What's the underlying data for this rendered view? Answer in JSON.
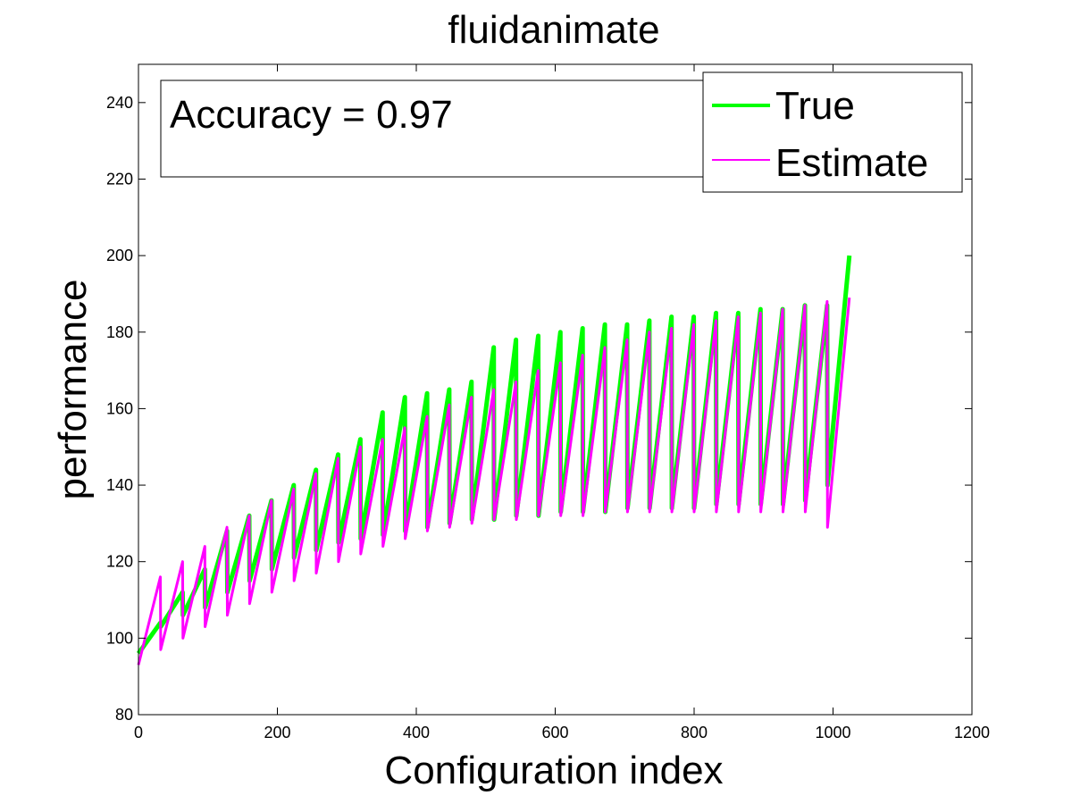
{
  "chart_data": {
    "type": "line",
    "title": "fluidanimate",
    "xlabel": "Configuration index",
    "ylabel": "performance",
    "xlim": [
      0,
      1200
    ],
    "ylim": [
      80,
      250
    ],
    "xticks": [
      0,
      200,
      400,
      600,
      800,
      1000,
      1200
    ],
    "yticks": [
      80,
      100,
      120,
      140,
      160,
      180,
      200,
      220,
      240
    ],
    "grid": false,
    "legend_position": "top-right",
    "annotation": "Accuracy = 0.97",
    "series": [
      {
        "name": "True",
        "color": "#00ff00",
        "cycles": [
          {
            "x0": 0,
            "x1": 32,
            "y0": 96,
            "y1": 104
          },
          {
            "x0": 32,
            "x1": 64,
            "y0": 103,
            "y1": 112
          },
          {
            "x0": 64,
            "x1": 96,
            "y0": 106,
            "y1": 118
          },
          {
            "x0": 96,
            "x1": 128,
            "y0": 108,
            "y1": 128
          },
          {
            "x0": 128,
            "x1": 160,
            "y0": 112,
            "y1": 132
          },
          {
            "x0": 160,
            "x1": 192,
            "y0": 115,
            "y1": 136
          },
          {
            "x0": 192,
            "x1": 224,
            "y0": 118,
            "y1": 140
          },
          {
            "x0": 224,
            "x1": 256,
            "y0": 121,
            "y1": 144
          },
          {
            "x0": 256,
            "x1": 288,
            "y0": 123,
            "y1": 148
          },
          {
            "x0": 288,
            "x1": 320,
            "y0": 125,
            "y1": 152
          },
          {
            "x0": 320,
            "x1": 352,
            "y0": 126,
            "y1": 159
          },
          {
            "x0": 352,
            "x1": 384,
            "y0": 127,
            "y1": 163
          },
          {
            "x0": 384,
            "x1": 416,
            "y0": 128,
            "y1": 164
          },
          {
            "x0": 416,
            "x1": 448,
            "y0": 129,
            "y1": 165
          },
          {
            "x0": 448,
            "x1": 480,
            "y0": 130,
            "y1": 167
          },
          {
            "x0": 480,
            "x1": 512,
            "y0": 131,
            "y1": 176
          },
          {
            "x0": 512,
            "x1": 544,
            "y0": 131,
            "y1": 178
          },
          {
            "x0": 544,
            "x1": 576,
            "y0": 132,
            "y1": 179
          },
          {
            "x0": 576,
            "x1": 608,
            "y0": 132,
            "y1": 180
          },
          {
            "x0": 608,
            "x1": 640,
            "y0": 133,
            "y1": 181
          },
          {
            "x0": 640,
            "x1": 672,
            "y0": 133,
            "y1": 182
          },
          {
            "x0": 672,
            "x1": 704,
            "y0": 133,
            "y1": 182
          },
          {
            "x0": 704,
            "x1": 736,
            "y0": 134,
            "y1": 183
          },
          {
            "x0": 736,
            "x1": 768,
            "y0": 134,
            "y1": 184
          },
          {
            "x0": 768,
            "x1": 800,
            "y0": 134,
            "y1": 184
          },
          {
            "x0": 800,
            "x1": 832,
            "y0": 134,
            "y1": 185
          },
          {
            "x0": 832,
            "x1": 864,
            "y0": 135,
            "y1": 185
          },
          {
            "x0": 864,
            "x1": 896,
            "y0": 135,
            "y1": 186
          },
          {
            "x0": 896,
            "x1": 928,
            "y0": 135,
            "y1": 186
          },
          {
            "x0": 928,
            "x1": 960,
            "y0": 135,
            "y1": 187
          },
          {
            "x0": 960,
            "x1": 992,
            "y0": 136,
            "y1": 187
          },
          {
            "x0": 992,
            "x1": 1024,
            "y0": 140,
            "y1": 200
          }
        ]
      },
      {
        "name": "Estimate",
        "color": "#ff00ff",
        "cycles": [
          {
            "x0": 0,
            "x1": 32,
            "y0": 93,
            "y1": 116
          },
          {
            "x0": 32,
            "x1": 64,
            "y0": 97,
            "y1": 120
          },
          {
            "x0": 64,
            "x1": 96,
            "y0": 100,
            "y1": 124
          },
          {
            "x0": 96,
            "x1": 128,
            "y0": 103,
            "y1": 129
          },
          {
            "x0": 128,
            "x1": 160,
            "y0": 106,
            "y1": 132
          },
          {
            "x0": 160,
            "x1": 192,
            "y0": 109,
            "y1": 136
          },
          {
            "x0": 192,
            "x1": 224,
            "y0": 112,
            "y1": 139
          },
          {
            "x0": 224,
            "x1": 256,
            "y0": 115,
            "y1": 143
          },
          {
            "x0": 256,
            "x1": 288,
            "y0": 117,
            "y1": 147
          },
          {
            "x0": 288,
            "x1": 320,
            "y0": 120,
            "y1": 150
          },
          {
            "x0": 320,
            "x1": 352,
            "y0": 122,
            "y1": 152
          },
          {
            "x0": 352,
            "x1": 384,
            "y0": 124,
            "y1": 155
          },
          {
            "x0": 384,
            "x1": 416,
            "y0": 126,
            "y1": 158
          },
          {
            "x0": 416,
            "x1": 448,
            "y0": 128,
            "y1": 161
          },
          {
            "x0": 448,
            "x1": 480,
            "y0": 129,
            "y1": 163
          },
          {
            "x0": 480,
            "x1": 512,
            "y0": 130,
            "y1": 165
          },
          {
            "x0": 512,
            "x1": 544,
            "y0": 131,
            "y1": 167
          },
          {
            "x0": 544,
            "x1": 576,
            "y0": 131,
            "y1": 170
          },
          {
            "x0": 576,
            "x1": 608,
            "y0": 132,
            "y1": 172
          },
          {
            "x0": 608,
            "x1": 640,
            "y0": 132,
            "y1": 174
          },
          {
            "x0": 640,
            "x1": 672,
            "y0": 132,
            "y1": 176
          },
          {
            "x0": 672,
            "x1": 704,
            "y0": 133,
            "y1": 178
          },
          {
            "x0": 704,
            "x1": 736,
            "y0": 133,
            "y1": 180
          },
          {
            "x0": 736,
            "x1": 768,
            "y0": 133,
            "y1": 181
          },
          {
            "x0": 768,
            "x1": 800,
            "y0": 133,
            "y1": 182
          },
          {
            "x0": 800,
            "x1": 832,
            "y0": 133,
            "y1": 183
          },
          {
            "x0": 832,
            "x1": 864,
            "y0": 133,
            "y1": 184
          },
          {
            "x0": 864,
            "x1": 896,
            "y0": 133,
            "y1": 185
          },
          {
            "x0": 896,
            "x1": 928,
            "y0": 133,
            "y1": 186
          },
          {
            "x0": 928,
            "x1": 960,
            "y0": 133,
            "y1": 187
          },
          {
            "x0": 960,
            "x1": 992,
            "y0": 133,
            "y1": 188
          },
          {
            "x0": 992,
            "x1": 1024,
            "y0": 129,
            "y1": 189
          }
        ]
      }
    ]
  }
}
